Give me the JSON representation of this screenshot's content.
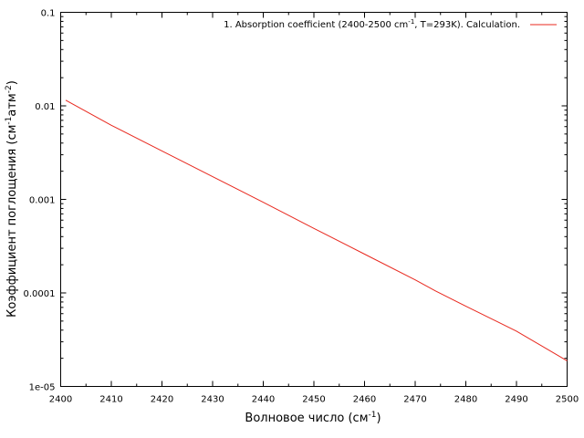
{
  "chart_data": {
    "type": "line",
    "xlabel": "Волновое число (см",
    "xlabel_sup": "-1",
    "xlabel_end": ")",
    "ylabel": "Коэффициент поглощения (см",
    "ylabel_sup1": "-1",
    "ylabel_mid": "атм",
    "ylabel_sup2": "-2",
    "ylabel_end": ")",
    "xlim": [
      2400,
      2500
    ],
    "ylim": [
      1e-05,
      0.1
    ],
    "y_scale": "log",
    "grid": false,
    "legend_position": "top-right",
    "x_ticks": [
      2400,
      2410,
      2420,
      2430,
      2440,
      2450,
      2460,
      2470,
      2480,
      2490,
      2500
    ],
    "x_tick_labels": [
      "2400",
      "2410",
      "2420",
      "2430",
      "2440",
      "2450",
      "2460",
      "2470",
      "2480",
      "2490",
      "2500"
    ],
    "y_ticks": [
      1e-05,
      0.0001,
      0.001,
      0.01,
      0.1
    ],
    "y_tick_labels": [
      "1e-05",
      "0.0001",
      "0.001",
      "0.01",
      "0.1"
    ],
    "series": [
      {
        "name": "1. Absorption coefficient (2400-2500 cm",
        "name_sup": "-1",
        "name_end": ", T=293K). Calculation.",
        "color": "#e8281e",
        "x": [
          2401,
          2410,
          2420,
          2430,
          2440,
          2450,
          2460,
          2470,
          2474,
          2480,
          2486,
          2490,
          2500
        ],
        "y": [
          0.0115,
          0.0062,
          0.0033,
          0.00175,
          0.00093,
          0.00049,
          0.00026,
          0.000138,
          0.000105,
          7.2e-05,
          5e-05,
          3.9e-05,
          1.88e-05
        ]
      }
    ]
  }
}
